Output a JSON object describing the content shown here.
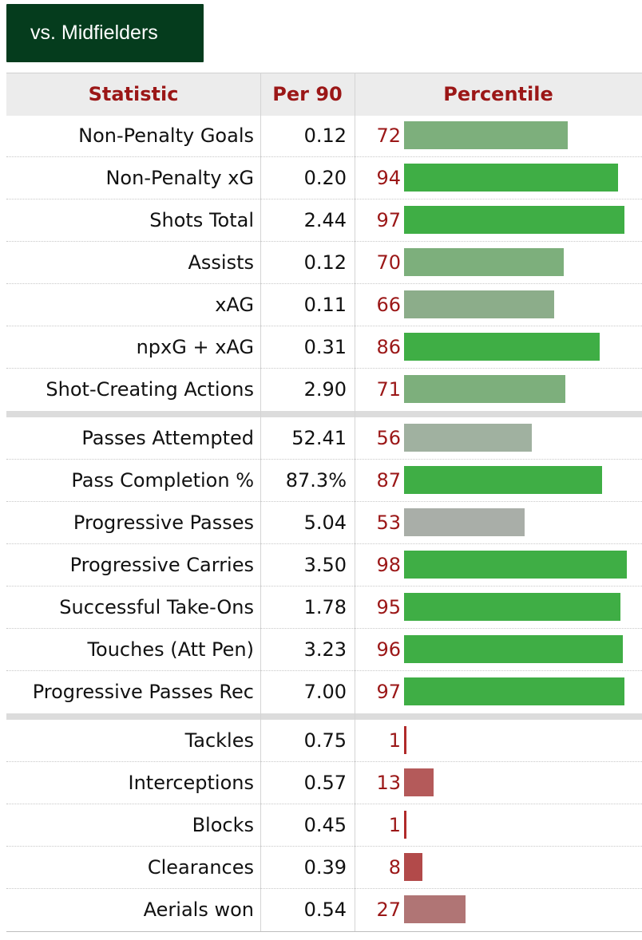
{
  "tab": {
    "label": "vs. Midfielders"
  },
  "header": {
    "statistic": "Statistic",
    "per90": "Per 90",
    "percentile": "Percentile"
  },
  "colors": {
    "elite": "#3fae45",
    "above_avg": "#7daf7c",
    "mid_green": "#8cad8a",
    "average": "#a6b1a6",
    "grey": "#a9aea8",
    "below_avg": "#b45a5a",
    "poor": "#b25050",
    "aerial": "#b07575",
    "percentile_text": "#9b1717"
  },
  "groups": [
    {
      "rows": [
        {
          "stat": "Non-Penalty Goals",
          "per90": "0.12",
          "percentile": 72,
          "bar_color": "#7daf7c"
        },
        {
          "stat": "Non-Penalty xG",
          "per90": "0.20",
          "percentile": 94,
          "bar_color": "#3fae45"
        },
        {
          "stat": "Shots Total",
          "per90": "2.44",
          "percentile": 97,
          "bar_color": "#3fae45"
        },
        {
          "stat": "Assists",
          "per90": "0.12",
          "percentile": 70,
          "bar_color": "#7daf7c"
        },
        {
          "stat": "xAG",
          "per90": "0.11",
          "percentile": 66,
          "bar_color": "#8cad8a"
        },
        {
          "stat": "npxG + xAG",
          "per90": "0.31",
          "percentile": 86,
          "bar_color": "#3fae45"
        },
        {
          "stat": "Shot-Creating Actions",
          "per90": "2.90",
          "percentile": 71,
          "bar_color": "#7daf7c"
        }
      ]
    },
    {
      "rows": [
        {
          "stat": "Passes Attempted",
          "per90": "52.41",
          "percentile": 56,
          "bar_color": "#a0b1a0"
        },
        {
          "stat": "Pass Completion %",
          "per90": "87.3%",
          "percentile": 87,
          "bar_color": "#3fae45"
        },
        {
          "stat": "Progressive Passes",
          "per90": "5.04",
          "percentile": 53,
          "bar_color": "#a9aea8"
        },
        {
          "stat": "Progressive Carries",
          "per90": "3.50",
          "percentile": 98,
          "bar_color": "#3fae45"
        },
        {
          "stat": "Successful Take-Ons",
          "per90": "1.78",
          "percentile": 95,
          "bar_color": "#3fae45"
        },
        {
          "stat": "Touches (Att Pen)",
          "per90": "3.23",
          "percentile": 96,
          "bar_color": "#3fae45"
        },
        {
          "stat": "Progressive Passes Rec",
          "per90": "7.00",
          "percentile": 97,
          "bar_color": "#3fae45"
        }
      ]
    },
    {
      "rows": [
        {
          "stat": "Tackles",
          "per90": "0.75",
          "percentile": 1,
          "bar_color": "#b02a2a"
        },
        {
          "stat": "Interceptions",
          "per90": "0.57",
          "percentile": 13,
          "bar_color": "#b45a5a"
        },
        {
          "stat": "Blocks",
          "per90": "0.45",
          "percentile": 1,
          "bar_color": "#b02a2a"
        },
        {
          "stat": "Clearances",
          "per90": "0.39",
          "percentile": 8,
          "bar_color": "#b24a4a"
        },
        {
          "stat": "Aerials won",
          "per90": "0.54",
          "percentile": 27,
          "bar_color": "#b07575"
        }
      ]
    }
  ]
}
